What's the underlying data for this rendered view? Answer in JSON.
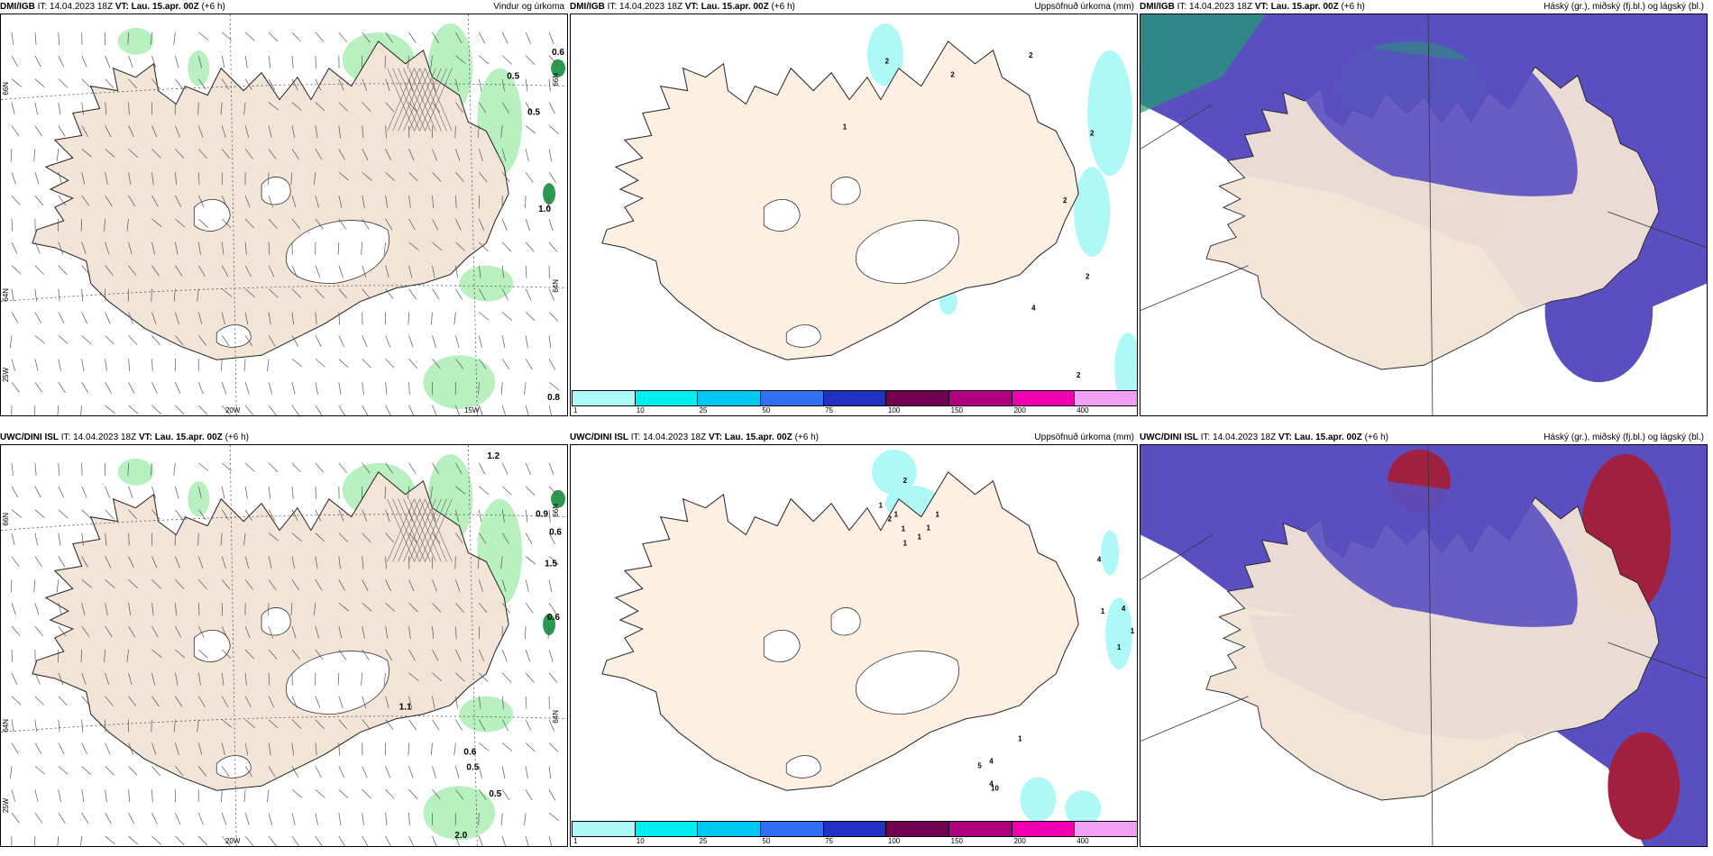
{
  "panels": [
    {
      "model": "DMI/IGB",
      "it_label": "IT:",
      "it_value": "14.04.2023 18Z",
      "vt_label": "VT:",
      "vt_value": "Lau. 15.apr. 00Z",
      "lead": "(+6 h)",
      "title": "Vindur og úrkoma",
      "type": "wind",
      "lat_labels": [
        "66N",
        "66N",
        "64N",
        "64N",
        "25W"
      ],
      "lon_labels": [
        "20W",
        "15W"
      ],
      "values": [
        "0.6",
        "0.5",
        "0.5",
        "1.0",
        "0.8"
      ]
    },
    {
      "model": "DMI/IGB",
      "it_label": "IT:",
      "it_value": "14.04.2023 18Z",
      "vt_label": "VT:",
      "vt_value": "Lau. 15.apr. 00Z",
      "lead": "(+6 h)",
      "title": "Uppsöfnuð úrkoma (mm)",
      "type": "precip",
      "values": [
        "2",
        "2",
        "2",
        "2",
        "1",
        "2",
        "2",
        "4",
        "2"
      ]
    },
    {
      "model": "DMI/IGB",
      "it_label": "IT:",
      "it_value": "14.04.2023 18Z",
      "vt_label": "VT:",
      "vt_value": "Lau. 15.apr. 00Z",
      "lead": "(+6 h)",
      "title": "Háský (gr.), miðský (fj.bl.) og lágský (bl.)",
      "type": "cloud"
    },
    {
      "model": "UWC/DINI ISL",
      "it_label": "IT:",
      "it_value": "14.04.2023 18Z",
      "vt_label": "VT:",
      "vt_value": "Lau. 15.apr. 00Z",
      "lead": "(+6 h)",
      "title": "",
      "type": "wind",
      "lat_labels": [
        "66N",
        "66N",
        "64N",
        "64N",
        "25W"
      ],
      "lon_labels": [
        "20W"
      ],
      "values": [
        "1.2",
        "0.9",
        "0.6",
        "1.5",
        "0.6",
        "0.6",
        "0.5",
        "0.5",
        "2.0",
        "1.1"
      ]
    },
    {
      "model": "UWC/DINI ISL",
      "it_label": "IT:",
      "it_value": "14.04.2023 18Z",
      "vt_label": "VT:",
      "vt_value": "Lau. 15.apr. 00Z",
      "lead": "(+6 h)",
      "title": "Uppsöfnuð úrkoma (mm)",
      "type": "precip",
      "values": [
        "2",
        "1",
        "2",
        "1",
        "1",
        "1",
        "1",
        "1",
        "1",
        "4",
        "4",
        "1",
        "1",
        "1",
        "5",
        "4",
        "4",
        "10",
        "1"
      ]
    },
    {
      "model": "UWC/DINI ISL",
      "it_label": "IT:",
      "it_value": "14.04.2023 18Z",
      "vt_label": "VT:",
      "vt_value": "Lau. 15.apr. 00Z",
      "lead": "(+6 h)",
      "title": "Háský (gr.), miðský (fj.bl.) og lágský (bl.)",
      "type": "cloud"
    }
  ],
  "colorbar": {
    "ticks": [
      "1",
      "10",
      "25",
      "50",
      "75",
      "100",
      "150",
      "200",
      "400"
    ],
    "colors": [
      "#aff8f8",
      "#00f0f0",
      "#00c8f0",
      "#3070f0",
      "#2030c0",
      "#700050",
      "#b00080",
      "#f000b0",
      "#f0a0f0"
    ]
  },
  "colors": {
    "land": "#f2e4d6",
    "land_light": "#fdf0e3",
    "sea": "#ffffff",
    "precip_green": "#b8f0c0",
    "precip_dark": "#2a9a50",
    "high_cloud": "#5a4fc0",
    "mid_cloud": "#1fa070",
    "low_cloud": "#3a6fe0",
    "red_cloud": "#a02040"
  }
}
